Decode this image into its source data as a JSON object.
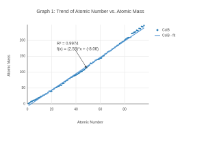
{
  "chart_data": {
    "type": "scatter",
    "title": "Graph 1: Trend of Atomic Number vs. Atomic Mass",
    "x_label": "Atomic Number",
    "y_label": "Atomic Mass",
    "annotations": [
      "R² = 0.9974",
      "f(x) = (2.58)*x + (-8.06)"
    ],
    "x": [
      1,
      2,
      3,
      4,
      5,
      6,
      7,
      8,
      9,
      10,
      11,
      12,
      13,
      14,
      15,
      16,
      17,
      18,
      19,
      20,
      21,
      22,
      23,
      24,
      25,
      26,
      27,
      28,
      29,
      30,
      31,
      32,
      33,
      34,
      35,
      36,
      37,
      38,
      39,
      40,
      41,
      42,
      43,
      44,
      45,
      46,
      47,
      48,
      49,
      50,
      51,
      52,
      53,
      54,
      55,
      56,
      57,
      58,
      59,
      60,
      61,
      62,
      63,
      64,
      65,
      66,
      67,
      68,
      69,
      70,
      71,
      72,
      73,
      74,
      75,
      76,
      77,
      78,
      79,
      80,
      81,
      82,
      83,
      84,
      85,
      86,
      87,
      88,
      89,
      90,
      91,
      92,
      93,
      94,
      95,
      96
    ],
    "series": [
      {
        "name": "ColB",
        "color": "#1f77b4",
        "values": [
          1,
          4,
          7,
          9,
          11,
          12,
          14,
          16,
          19,
          20,
          23,
          24,
          27,
          28,
          31,
          32,
          35.5,
          40,
          39,
          40,
          45,
          48,
          51,
          52,
          55,
          56,
          59,
          59,
          64,
          65,
          70,
          73,
          75,
          79,
          80,
          84,
          85,
          88,
          89,
          91,
          93,
          96,
          98,
          101,
          103,
          106,
          108,
          112,
          115,
          119,
          122,
          128,
          127,
          131,
          133,
          137,
          139,
          140,
          141,
          144,
          145,
          150,
          152,
          157,
          159,
          163,
          165,
          167,
          169,
          173,
          175,
          178,
          181,
          184,
          186,
          190,
          192,
          195,
          197,
          201,
          204,
          207,
          209,
          209,
          210,
          222,
          223,
          226,
          227,
          232,
          231,
          238,
          237,
          244,
          243,
          247
        ]
      },
      {
        "name": "ColB - fit",
        "color": "#5b9bd5",
        "x": [
          1,
          96
        ],
        "values": [
          -5.48,
          239.62
        ]
      }
    ],
    "xlim": [
      0,
      100
    ],
    "xticks": [
      0,
      20,
      40,
      60,
      80
    ],
    "ylim": [
      0,
      250
    ],
    "yticks": [
      0,
      50,
      100,
      150,
      200
    ],
    "grid": true,
    "legend": "top-right"
  }
}
